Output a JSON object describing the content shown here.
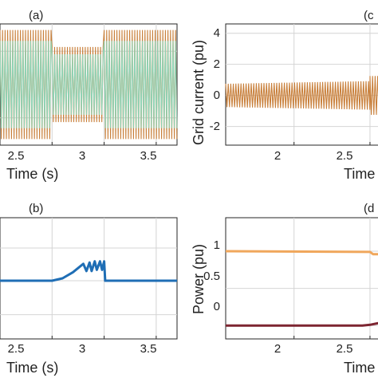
{
  "chart_data": [
    {
      "panel_label": "(a)",
      "type": "line",
      "xlabel": "Time (s)",
      "ylabel": "",
      "xlim": [
        2.0,
        3.7
      ],
      "ylim": [
        -1.0,
        1.0
      ],
      "xticks": [
        "2.5",
        "3",
        "3.5"
      ],
      "yticks": [],
      "grid": true,
      "series": [
        {
          "color": "#c87f3a",
          "segments": [
            [
              2.0,
              2.5,
              0.9
            ],
            [
              2.5,
              3.0,
              0.62
            ],
            [
              3.0,
              3.7,
              0.9
            ]
          ]
        },
        {
          "color": "#8fd3b5",
          "segments": [
            [
              2.0,
              2.5,
              0.72
            ],
            [
              2.5,
              3.0,
              0.5
            ],
            [
              3.0,
              3.7,
              0.72
            ]
          ]
        }
      ]
    },
    {
      "panel_label": "(b)",
      "type": "line",
      "xlabel": "Time (s)",
      "ylabel": "",
      "xlim": [
        2.0,
        3.7
      ],
      "ylim": [
        0,
        1
      ],
      "xticks": [
        "2.5",
        "3",
        "3.5"
      ],
      "yticks": [],
      "grid": true,
      "series": [
        {
          "color": "#1f6eb5",
          "x": [
            2.0,
            2.5,
            2.6,
            2.7,
            2.8,
            2.83,
            2.86,
            2.88,
            2.91,
            2.93,
            2.96,
            2.98,
            3.0,
            3.01,
            3.7
          ],
          "y": [
            0.48,
            0.48,
            0.5,
            0.55,
            0.62,
            0.56,
            0.63,
            0.56,
            0.64,
            0.57,
            0.64,
            0.57,
            0.64,
            0.48,
            0.48
          ]
        }
      ]
    },
    {
      "panel_label": "(c",
      "type": "line",
      "xlabel": "Time",
      "ylabel": "Grid current (pu)",
      "xlim": [
        1.55,
        2.6
      ],
      "ylim": [
        -3.2,
        4.6
      ],
      "xticks": [
        "2",
        "2.5"
      ],
      "yticks": [
        "4",
        "2",
        "0",
        "-2"
      ],
      "grid": true,
      "series": [
        {
          "color": "#c87f3a",
          "segments": [
            [
              1.55,
              2.5,
              0.75
            ],
            [
              2.5,
              2.6,
              1.25
            ]
          ],
          "growth": 0.25
        }
      ]
    },
    {
      "panel_label": "(d",
      "type": "line",
      "xlabel": "Time",
      "ylabel": "Power (pu)",
      "xlim": [
        1.55,
        2.6
      ],
      "ylim": [
        -0.18,
        1.45
      ],
      "xticks": [
        "2",
        "2.5"
      ],
      "yticks": [
        "1",
        "0.5",
        "0"
      ],
      "grid": true,
      "series": [
        {
          "color": "#f0a75c",
          "x": [
            1.55,
            2.5,
            2.52,
            2.6
          ],
          "y": [
            1.0,
            0.99,
            0.96,
            0.96
          ]
        },
        {
          "color": "#7d2531",
          "x": [
            1.55,
            2.45,
            2.5,
            2.55,
            2.6
          ],
          "y": [
            0.0,
            0.0,
            0.01,
            0.03,
            0.06
          ]
        }
      ]
    }
  ]
}
